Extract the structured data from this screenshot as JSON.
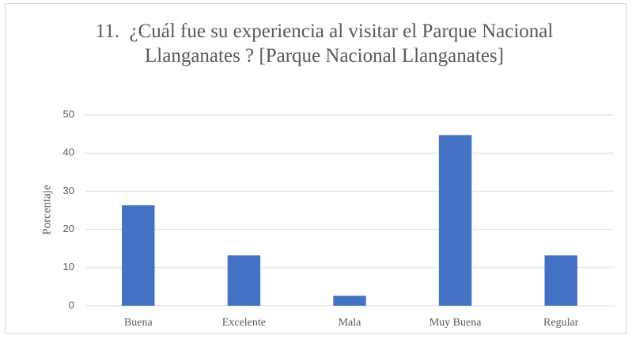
{
  "chart_data": {
    "type": "bar",
    "title": "11.  ¿Cuál fue su experiencia al visitar el Parque Nacional Llanganates ? [Parque Nacional Llanganates]",
    "y_label": "Porcentaje",
    "categories": [
      "Buena",
      "Excelente",
      "Mala",
      "Muy Buena",
      "Regular"
    ],
    "values": [
      26.3,
      13.2,
      2.6,
      44.7,
      13.2
    ],
    "color": "#4472c4",
    "ylim": [
      0,
      50
    ],
    "yticks": [
      0,
      10,
      20,
      30,
      40,
      50
    ],
    "grid": true
  }
}
